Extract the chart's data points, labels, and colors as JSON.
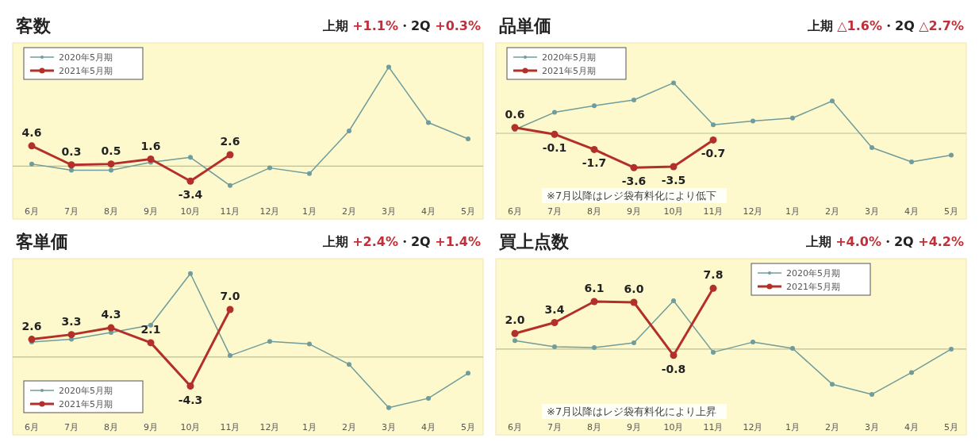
{
  "chart_data": [
    {
      "type": "line",
      "title": "客数",
      "subtitle": "上期 +1.1%・2Q +0.3%",
      "categories": [
        "6月",
        "7月",
        "8月",
        "9月",
        "10月",
        "11月",
        "12月",
        "1月",
        "2月",
        "3月",
        "4月",
        "5月"
      ],
      "ylim": [
        -12,
        28
      ],
      "tick_labels": "x",
      "legend": "top left",
      "marker": "circle",
      "ref_lines": [
        {
          "axis": "y",
          "value": 0,
          "color": "#b8c29a"
        }
      ],
      "series": [
        {
          "name": "2020年5月期",
          "color": "#6f9c9c",
          "values": [
            0.5,
            -0.9,
            -0.9,
            0.9,
            2.0,
            -4.4,
            -0.4,
            -1.7,
            8.0,
            22.5,
            9.9,
            6.2
          ]
        },
        {
          "name": "2021年5月期",
          "color": "#b3302a",
          "values": [
            4.6,
            0.3,
            0.5,
            1.6,
            -3.4,
            2.6,
            null,
            null,
            null,
            null,
            null,
            null
          ],
          "value_labels": [
            "4.6",
            "0.3",
            "0.5",
            "1.6",
            "-3.4",
            "2.6",
            null,
            null,
            null,
            null,
            null,
            null
          ]
        }
      ]
    },
    {
      "type": "line",
      "title": "品単価",
      "subtitle": "上期 △1.6%・2Q △2.7%",
      "categories": [
        "6月",
        "7月",
        "8月",
        "9月",
        "10月",
        "11月",
        "12月",
        "1月",
        "2月",
        "3月",
        "4月",
        "5月"
      ],
      "ylim": [
        -9,
        9.5
      ],
      "tick_labels": "x",
      "legend": "top left",
      "marker": "circle",
      "ref_lines": [
        {
          "axis": "y",
          "value": 0,
          "color": "#b8c29a"
        }
      ],
      "annotations": [
        "※7月以降はレジ袋有料化により低下"
      ],
      "series": [
        {
          "name": "2020年5月期",
          "color": "#6f9c9c",
          "values": [
            0.4,
            2.2,
            2.9,
            3.5,
            5.3,
            0.9,
            1.3,
            1.6,
            3.4,
            -1.5,
            -3.0,
            -2.3
          ]
        },
        {
          "name": "2021年5月期",
          "color": "#b3302a",
          "values": [
            0.6,
            -0.1,
            -1.7,
            -3.6,
            -3.5,
            -0.7,
            null,
            null,
            null,
            null,
            null,
            null
          ],
          "value_labels": [
            "0.6",
            "-0.1",
            "-1.7",
            "-3.6",
            "-3.5",
            "-0.7",
            null,
            null,
            null,
            null,
            null,
            null
          ]
        }
      ]
    },
    {
      "type": "line",
      "title": "客単価",
      "subtitle": "上期 +2.4%・2Q +1.4%",
      "categories": [
        "6月",
        "7月",
        "8月",
        "9月",
        "10月",
        "11月",
        "12月",
        "1月",
        "2月",
        "3月",
        "4月",
        "5月"
      ],
      "ylim": [
        -11.5,
        14.5
      ],
      "tick_labels": "x",
      "legend": "bottom left",
      "marker": "circle",
      "ref_lines": [
        {
          "axis": "y",
          "value": 0,
          "color": "#b8c29a"
        }
      ],
      "series": [
        {
          "name": "2020年5月期",
          "color": "#6f9c9c",
          "values": [
            2.2,
            2.6,
            3.6,
            4.7,
            12.3,
            0.2,
            2.3,
            1.9,
            -1.1,
            -7.5,
            -6.1,
            -2.4
          ]
        },
        {
          "name": "2021年5月期",
          "color": "#b3302a",
          "values": [
            2.6,
            3.3,
            4.3,
            2.1,
            -4.3,
            7.0,
            null,
            null,
            null,
            null,
            null,
            null
          ],
          "value_labels": [
            "2.6",
            "3.3",
            "4.3",
            "2.1",
            "-4.3",
            "7.0",
            null,
            null,
            null,
            null,
            null,
            null
          ]
        }
      ]
    },
    {
      "type": "line",
      "title": "買上点数",
      "subtitle": "上期 +4.0%・2Q +4.2%",
      "categories": [
        "6月",
        "7月",
        "8月",
        "9月",
        "10月",
        "11月",
        "12月",
        "1月",
        "2月",
        "3月",
        "4月",
        "5月"
      ],
      "ylim": [
        -11,
        11.6
      ],
      "tick_labels": "x",
      "legend": "top",
      "marker": "circle",
      "ref_lines": [
        {
          "axis": "y",
          "value": 0,
          "color": "#b8c29a"
        }
      ],
      "annotations": [
        "※7月以降はレジ袋有料化により上昇"
      ],
      "series": [
        {
          "name": "2020年5月期",
          "color": "#6f9c9c",
          "values": [
            1.1,
            0.3,
            0.2,
            0.8,
            6.2,
            -0.4,
            0.9,
            0.1,
            -4.5,
            -5.8,
            -3.0,
            0.0
          ]
        },
        {
          "name": "2021年5月期",
          "color": "#b3302a",
          "values": [
            2.0,
            3.4,
            6.1,
            6.0,
            -0.8,
            7.8,
            null,
            null,
            null,
            null,
            null,
            null
          ],
          "value_labels": [
            "2.0",
            "3.4",
            "6.1",
            "6.0",
            "-0.8",
            "7.8",
            null,
            null,
            null,
            null,
            null,
            null
          ]
        }
      ]
    }
  ]
}
